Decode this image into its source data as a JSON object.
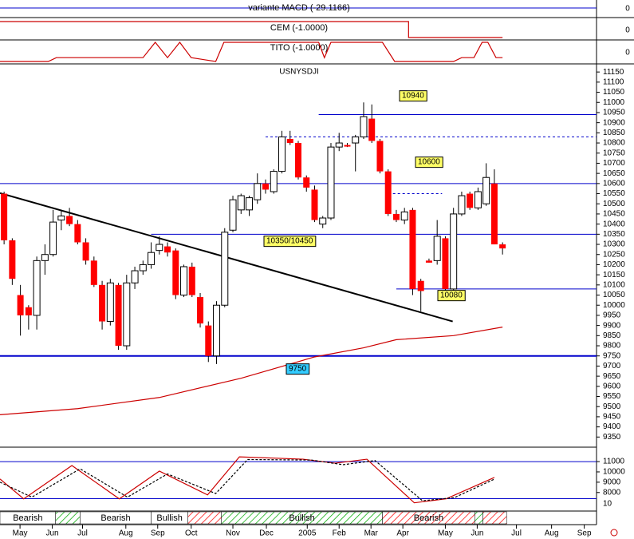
{
  "chart_data": {
    "type": "candlestick",
    "title": "USNYSDJI",
    "macd_label": "variante MACD (-29.1166)",
    "cem_label": "CEM (-1.0000)",
    "tito_label": "TITO (-1.0000)",
    "panel_zero_ticks": [
      0,
      0,
      0
    ],
    "xlim": [
      -0.5,
      76.6
    ],
    "xticks": [
      {
        "value": 1.95,
        "label": "May"
      },
      {
        "value": 5.9,
        "label": "Jun"
      },
      {
        "value": 9.6,
        "label": "Jul"
      },
      {
        "value": 14.9,
        "label": "Aug"
      },
      {
        "value": 18.8,
        "label": "Sep"
      },
      {
        "value": 22.9,
        "label": "Oct"
      },
      {
        "value": 28,
        "label": "Nov"
      },
      {
        "value": 32.1,
        "label": "Dec"
      },
      {
        "value": 37.1,
        "label": "2005"
      },
      {
        "value": 41,
        "label": "Feb"
      },
      {
        "value": 44.9,
        "label": "Mar"
      },
      {
        "value": 48.8,
        "label": "Apr"
      },
      {
        "value": 54,
        "label": "May"
      },
      {
        "value": 57.9,
        "label": "Jun"
      },
      {
        "value": 62.7,
        "label": "Jul"
      },
      {
        "value": 67,
        "label": "Aug"
      },
      {
        "value": 71,
        "label": "Sep"
      }
    ],
    "ylim": [
      9300,
      11190
    ],
    "yticks": [
      9350,
      9400,
      9450,
      9500,
      9550,
      9600,
      9650,
      9700,
      9750,
      9800,
      9850,
      9900,
      9950,
      10000,
      10050,
      10100,
      10150,
      10200,
      10250,
      10300,
      10350,
      10400,
      10450,
      10500,
      10550,
      10600,
      10650,
      10700,
      10750,
      10800,
      10850,
      10900,
      10950,
      11000,
      11050,
      11100,
      11150
    ],
    "open": [
      10550,
      10320,
      10050,
      9990,
      9950,
      10220,
      10250,
      10420,
      10440,
      10400,
      10310,
      10220,
      10100,
      9920,
      10100,
      9800,
      10110,
      10170,
      10200,
      10270,
      10290,
      10270,
      10050,
      10190,
      10040,
      9900,
      9750,
      10000,
      10370,
      10470,
      10470,
      10520,
      10600,
      10560,
      10660,
      10820,
      10800,
      10630,
      10570,
      10400,
      10430,
      10780,
      10790,
      10800,
      10830,
      10920,
      10810,
      10660,
      10450,
      10420,
      10470,
      10120,
      10220,
      10220,
      10330,
      10080,
      10450,
      10550,
      10480,
      10500,
      10600,
      10300
    ],
    "high": [
      10560,
      10330,
      10100,
      10000,
      10240,
      10300,
      10470,
      10470,
      10480,
      10420,
      10330,
      10240,
      10120,
      10130,
      10110,
      10150,
      10190,
      10220,
      10310,
      10340,
      10310,
      10280,
      10200,
      10210,
      10060,
      9920,
      10020,
      10380,
      10540,
      10550,
      10540,
      10650,
      10620,
      10670,
      10860,
      10860,
      10810,
      10640,
      10590,
      10440,
      10800,
      10850,
      10800,
      10840,
      11000,
      10990,
      10820,
      10670,
      10470,
      10480,
      10480,
      10130,
      10230,
      10420,
      10340,
      10480,
      10560,
      10560,
      10580,
      10700,
      10670,
      10310
    ],
    "low": [
      10300,
      10100,
      9850,
      9880,
      9880,
      10150,
      10240,
      10370,
      10390,
      10300,
      10200,
      10090,
      9880,
      9900,
      9780,
      9780,
      10080,
      10150,
      10180,
      10250,
      10240,
      10030,
      10040,
      10040,
      9890,
      9720,
      9710,
      9990,
      10360,
      10450,
      10440,
      10500,
      10550,
      10550,
      10650,
      10790,
      10620,
      10560,
      10410,
      10380,
      10420,
      10760,
      10780,
      10660,
      10820,
      10800,
      10650,
      10440,
      10410,
      10400,
      10050,
      9970,
      10210,
      10200,
      10040,
      10070,
      10440,
      10470,
      10470,
      10490,
      10300,
      10250
    ],
    "close": [
      10320,
      10130,
      9950,
      9950,
      10220,
      10250,
      10410,
      10440,
      10400,
      10310,
      10220,
      10100,
      9920,
      10110,
      9800,
      10110,
      10170,
      10200,
      10260,
      10300,
      10260,
      10050,
      10190,
      10050,
      9910,
      9750,
      10000,
      10360,
      10520,
      10540,
      10530,
      10600,
      10570,
      10660,
      10830,
      10800,
      10630,
      10580,
      10420,
      10430,
      10780,
      10800,
      10785,
      10830,
      10930,
      10810,
      10660,
      10450,
      10420,
      10460,
      10080,
      10070,
      10210,
      10340,
      10080,
      10450,
      10540,
      10480,
      10560,
      10630,
      10300,
      10280
    ],
    "up_color": "#ffffff",
    "down_color": "#ff0000",
    "levels": [
      {
        "value": 10940,
        "start": 38.5
      },
      {
        "value": 10600,
        "start": -0.5
      },
      {
        "value": 10350,
        "start": 18,
        "label": "10350/10450"
      },
      {
        "value": 10080,
        "start": 48
      },
      {
        "value": 9750,
        "start": -0.5
      }
    ],
    "dashed_levels": [
      {
        "value": 10830,
        "start": 32,
        "end": 76
      },
      {
        "value": 10550,
        "start": 47,
        "end": 53.6
      }
    ],
    "trendline": {
      "x": [
        -0.5,
        54.9
      ],
      "y": [
        10553,
        9920
      ]
    },
    "moving_average": {
      "x": [
        -0.5,
        9,
        19,
        29,
        38,
        44,
        48,
        55,
        61
      ],
      "y": [
        9460,
        9490,
        9545,
        9640,
        9745,
        9790,
        9830,
        9850,
        9892
      ],
      "color": "#cc0000"
    },
    "cem": {
      "x": [
        -0.5,
        49.5,
        49.5,
        61
      ],
      "y": [
        1,
        1,
        -1,
        -1
      ],
      "color": "#cc0000"
    },
    "tito": {
      "x": [
        -0.5,
        5.4,
        6.4,
        17,
        18.5,
        20,
        21.5,
        22.9,
        25.9,
        26.9,
        38.5,
        39.2,
        40,
        46.3,
        47.8,
        55,
        56,
        57.5,
        58.5,
        59.2,
        60.2,
        61
      ],
      "y": [
        -1,
        -1,
        -0.6,
        -0.6,
        1,
        -0.6,
        1,
        -0.6,
        -1,
        1,
        1,
        -0.6,
        1,
        1,
        -1,
        -1,
        -0.6,
        -0.6,
        1,
        1,
        -0.6,
        -0.6
      ],
      "color": "#cc0000"
    },
    "oscillator": {
      "ylim": [
        6200,
        12400
      ],
      "yticks": [
        11000,
        10000,
        9000,
        8000
      ],
      "levels": [
        11000,
        7400
      ],
      "note": "10",
      "series": [
        {
          "name": "osc",
          "color": "#cc0000",
          "x": [
            -0.5,
            2.4,
            8.3,
            14.1,
            19,
            24.9,
            28.8,
            36.6,
            40.5,
            44.4,
            50.2,
            54.1,
            60
          ],
          "y": [
            9308,
            7385,
            10615,
            7385,
            10077,
            7769,
            11461,
            11231,
            10846,
            11231,
            7000,
            7385,
            9462
          ]
        },
        {
          "name": "signal",
          "color": "#000000",
          "x": [
            -0.5,
            3.4,
            9.3,
            15.1,
            20,
            25.9,
            29.8,
            37.6,
            41.5,
            45.4,
            51.2,
            55.1,
            60
          ],
          "y": [
            9000,
            7550,
            10300,
            7550,
            9800,
            7900,
            11200,
            11150,
            10700,
            11100,
            7200,
            7500,
            9300
          ]
        }
      ]
    },
    "regimes": [
      {
        "label": "Bearish",
        "start": -0.5,
        "end": 6.3,
        "fill": "#ffffff"
      },
      {
        "start": 6.3,
        "end": 9.3,
        "fill": "#00aa00"
      },
      {
        "label": "Bearish",
        "start": 9.3,
        "end": 18,
        "fill": "#ffffff"
      },
      {
        "label": "Bullish",
        "start": 18,
        "end": 22.5,
        "fill": "#ffffff"
      },
      {
        "start": 22.5,
        "end": 26.6,
        "fill": "#ff0000"
      },
      {
        "label": "Bullish",
        "start": 26.6,
        "end": 46.3,
        "fill": "#00aa00"
      },
      {
        "label": "Bearish",
        "start": 46.3,
        "end": 57.6,
        "fill": "#ff0000"
      },
      {
        "start": 57.6,
        "end": 58.6,
        "fill": "#00aa00"
      },
      {
        "start": 58.6,
        "end": 61.5,
        "fill": "#ff0000"
      }
    ]
  }
}
